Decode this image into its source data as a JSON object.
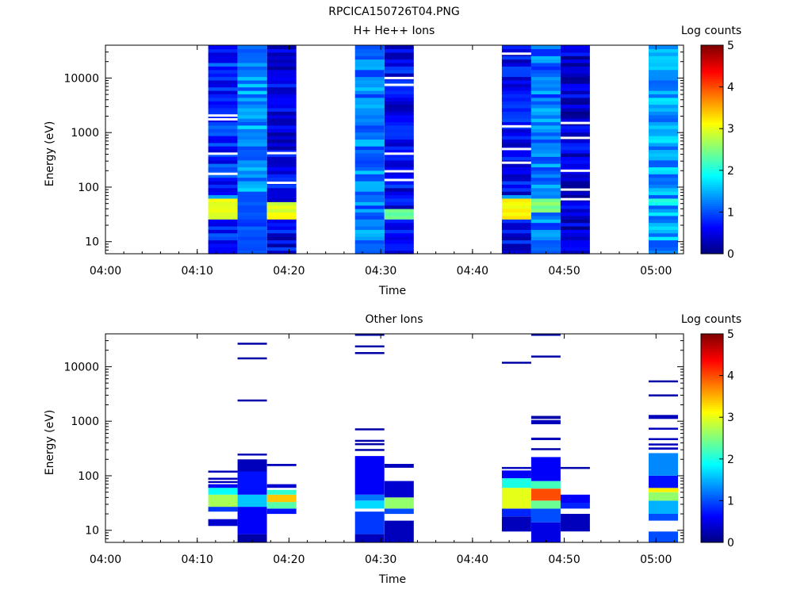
{
  "figure_title": "RPCICA150726T04.PNG",
  "colors": {
    "jet": [
      "#00007f",
      "#0000ff",
      "#007fff",
      "#00ffff",
      "#7fff7f",
      "#ffff00",
      "#ff7f00",
      "#ff0000",
      "#7f0000"
    ],
    "axis": "#000000",
    "background": "#ffffff"
  },
  "chart_data": [
    {
      "type": "heatmap",
      "title": "H+ He++ Ions",
      "xlabel": "Time",
      "ylabel": "Energy (eV)",
      "yscale": "log",
      "xlim": [
        "04:00",
        "05:03"
      ],
      "ylim": [
        6,
        40000
      ],
      "x_ticks": [
        "04:00",
        "04:10",
        "04:20",
        "04:30",
        "04:40",
        "04:50",
        "05:00"
      ],
      "y_ticks": [
        "10",
        "100",
        "1000",
        "10000"
      ],
      "colorbar": {
        "label": "Log counts",
        "range": [
          0,
          5
        ],
        "ticks": [
          "0",
          "1",
          "2",
          "3",
          "4",
          "5"
        ]
      },
      "columns": [
        {
          "start": "04:11:12",
          "end": "04:14:24",
          "base": 0.8,
          "features": [
            {
              "emin": 27,
              "emax": 60,
              "value": 3.0
            },
            {
              "emin": 60,
              "emax": 70,
              "value": 1.6
            }
          ],
          "gaps": [
            1750,
            2050,
            410,
            175
          ]
        },
        {
          "start": "04:14:24",
          "end": "04:17:36",
          "base": 1.35,
          "features": [
            {
              "emin": 6,
              "emax": 70,
              "value": 1.0
            }
          ],
          "gaps": []
        },
        {
          "start": "04:17:36",
          "end": "04:20:48",
          "base": 0.55,
          "features": [
            {
              "emin": 27,
              "emax": 55,
              "value": 3.0
            }
          ],
          "gaps": [
            420,
            120
          ]
        },
        {
          "start": "04:27:12",
          "end": "04:30:24",
          "base": 1.25,
          "features": [],
          "gaps": []
        },
        {
          "start": "04:30:24",
          "end": "04:33:36",
          "base": 0.6,
          "features": [
            {
              "emin": 25,
              "emax": 40,
              "value": 2.4
            }
          ],
          "gaps": [
            10000,
            7500,
            410,
            195,
            135
          ]
        },
        {
          "start": "04:43:12",
          "end": "04:46:24",
          "base": 0.6,
          "features": [
            {
              "emin": 25,
              "emax": 60,
              "value": 3.1
            },
            {
              "emin": 60,
              "emax": 72,
              "value": 1.5
            }
          ],
          "gaps": [
            28000,
            1300,
            500,
            280
          ]
        },
        {
          "start": "04:46:24",
          "end": "04:49:36",
          "base": 1.2,
          "features": [
            {
              "emin": 35,
              "emax": 60,
              "value": 2.5
            }
          ],
          "gaps": []
        },
        {
          "start": "04:49:36",
          "end": "04:52:48",
          "base": 0.45,
          "features": [],
          "gaps": [
            1500,
            800,
            200,
            90,
            60
          ]
        },
        {
          "start": "04:59:12",
          "end": "05:02:24",
          "base": 1.4,
          "features": [
            {
              "emin": 45,
              "emax": 60,
              "value": 1.9
            }
          ],
          "gaps": []
        }
      ]
    },
    {
      "type": "heatmap",
      "title": "Other Ions",
      "xlabel": "Time",
      "ylabel": "Energy (eV)",
      "yscale": "log",
      "xlim": [
        "04:00",
        "05:03"
      ],
      "ylim": [
        6,
        40000
      ],
      "x_ticks": [
        "04:00",
        "04:10",
        "04:20",
        "04:30",
        "04:40",
        "04:50",
        "05:00"
      ],
      "y_ticks": [
        "10",
        "100",
        "1000",
        "10000"
      ],
      "colorbar": {
        "label": "Log counts",
        "range": [
          0,
          5
        ],
        "ticks": [
          "0",
          "1",
          "2",
          "3",
          "4",
          "5"
        ]
      },
      "columns": [
        {
          "start": "04:11:12",
          "end": "04:14:24",
          "features": [
            {
              "emin": 12,
              "emax": 16,
              "value": 0.4
            },
            {
              "emin": 22,
              "emax": 27,
              "value": 0.9
            },
            {
              "emin": 27,
              "emax": 45,
              "value": 2.7
            },
            {
              "emin": 45,
              "emax": 60,
              "value": 1.9
            },
            {
              "emin": 60,
              "emax": 70,
              "value": 0.6
            },
            {
              "emin": 75,
              "emax": 80,
              "value": 0.3
            },
            {
              "emin": 87,
              "emax": 92,
              "value": 0.3
            },
            {
              "emin": 118,
              "emax": 124,
              "value": 0.3
            }
          ]
        },
        {
          "start": "04:14:24",
          "end": "04:17:36",
          "features": [
            {
              "emin": 6,
              "emax": 8.5,
              "value": 0.2
            },
            {
              "emin": 8.5,
              "emax": 27,
              "value": 0.6
            },
            {
              "emin": 27,
              "emax": 45,
              "value": 1.6
            },
            {
              "emin": 45,
              "emax": 120,
              "value": 0.7
            },
            {
              "emin": 120,
              "emax": 200,
              "value": 0.3
            },
            {
              "emin": 240,
              "emax": 255,
              "value": 0.3
            },
            {
              "emin": 2350,
              "emax": 2500,
              "value": 0.2
            },
            {
              "emin": 14000,
              "emax": 14800,
              "value": 0.2
            },
            {
              "emin": 26000,
              "emax": 27500,
              "value": 0.2
            }
          ]
        },
        {
          "start": "04:17:36",
          "end": "04:20:48",
          "features": [
            {
              "emin": 20,
              "emax": 25,
              "value": 0.7
            },
            {
              "emin": 25,
              "emax": 33,
              "value": 2.3
            },
            {
              "emin": 33,
              "emax": 45,
              "value": 3.4
            },
            {
              "emin": 45,
              "emax": 55,
              "value": 2.1
            },
            {
              "emin": 60,
              "emax": 70,
              "value": 0.4
            },
            {
              "emin": 150,
              "emax": 165,
              "value": 0.3
            }
          ]
        },
        {
          "start": "04:27:12",
          "end": "04:30:24",
          "features": [
            {
              "emin": 6,
              "emax": 8.5,
              "value": 0.3
            },
            {
              "emin": 8.5,
              "emax": 22,
              "value": 0.9
            },
            {
              "emin": 25,
              "emax": 35,
              "value": 1.7
            },
            {
              "emin": 35,
              "emax": 45,
              "value": 1.2
            },
            {
              "emin": 45,
              "emax": 230,
              "value": 0.6
            },
            {
              "emin": 290,
              "emax": 310,
              "value": 0.2
            },
            {
              "emin": 370,
              "emax": 395,
              "value": 0.2
            },
            {
              "emin": 430,
              "emax": 455,
              "value": 0.2
            },
            {
              "emin": 700,
              "emax": 740,
              "value": 0.2
            },
            {
              "emin": 17500,
              "emax": 18500,
              "value": 0.2
            },
            {
              "emin": 23000,
              "emax": 24500,
              "value": 0.2
            },
            {
              "emin": 38000,
              "emax": 40000,
              "value": 0.2
            }
          ]
        },
        {
          "start": "04:30:24",
          "end": "04:33:36",
          "features": [
            {
              "emin": 6,
              "emax": 15,
              "value": 0.3
            },
            {
              "emin": 20,
              "emax": 25,
              "value": 1.0
            },
            {
              "emin": 25,
              "emax": 40,
              "value": 2.6
            },
            {
              "emin": 40,
              "emax": 80,
              "value": 0.4
            },
            {
              "emin": 140,
              "emax": 165,
              "value": 0.3
            }
          ]
        },
        {
          "start": "04:43:12",
          "end": "04:46:24",
          "features": [
            {
              "emin": 9.5,
              "emax": 18,
              "value": 0.3
            },
            {
              "emin": 18,
              "emax": 25,
              "value": 0.8
            },
            {
              "emin": 25,
              "emax": 60,
              "value": 3.0
            },
            {
              "emin": 60,
              "emax": 90,
              "value": 2.0
            },
            {
              "emin": 90,
              "emax": 125,
              "value": 0.6
            },
            {
              "emin": 135,
              "emax": 145,
              "value": 0.3
            },
            {
              "emin": 11500,
              "emax": 12300,
              "value": 0.2
            }
          ]
        },
        {
          "start": "04:46:24",
          "end": "04:49:36",
          "features": [
            {
              "emin": 6,
              "emax": 14,
              "value": 0.5
            },
            {
              "emin": 14,
              "emax": 25,
              "value": 1.0
            },
            {
              "emin": 25,
              "emax": 35,
              "value": 2.4
            },
            {
              "emin": 35,
              "emax": 58,
              "value": 4.0
            },
            {
              "emin": 58,
              "emax": 80,
              "value": 2.2
            },
            {
              "emin": 80,
              "emax": 220,
              "value": 0.6
            },
            {
              "emin": 300,
              "emax": 320,
              "value": 0.2
            },
            {
              "emin": 450,
              "emax": 500,
              "value": 0.3
            },
            {
              "emin": 880,
              "emax": 1050,
              "value": 0.3
            },
            {
              "emin": 1100,
              "emax": 1250,
              "value": 0.2
            },
            {
              "emin": 15000,
              "emax": 16000,
              "value": 0.2
            },
            {
              "emin": 38000,
              "emax": 40000,
              "value": 0.2
            }
          ]
        },
        {
          "start": "04:49:36",
          "end": "04:52:48",
          "features": [
            {
              "emin": 9.5,
              "emax": 20,
              "value": 0.3
            },
            {
              "emin": 25,
              "emax": 32,
              "value": 0.8
            },
            {
              "emin": 32,
              "emax": 45,
              "value": 0.6
            },
            {
              "emin": 135,
              "emax": 145,
              "value": 0.2
            }
          ]
        },
        {
          "start": "04:59:12",
          "end": "05:02:24",
          "features": [
            {
              "emin": 6,
              "emax": 9.5,
              "value": 1.0
            },
            {
              "emin": 15,
              "emax": 20,
              "value": 1.0
            },
            {
              "emin": 20,
              "emax": 35,
              "value": 1.5
            },
            {
              "emin": 35,
              "emax": 50,
              "value": 2.6
            },
            {
              "emin": 50,
              "emax": 60,
              "value": 3.2
            },
            {
              "emin": 60,
              "emax": 100,
              "value": 0.7
            },
            {
              "emin": 100,
              "emax": 260,
              "value": 1.3
            },
            {
              "emin": 300,
              "emax": 330,
              "value": 0.3
            },
            {
              "emin": 360,
              "emax": 390,
              "value": 0.3
            },
            {
              "emin": 460,
              "emax": 490,
              "value": 0.3
            },
            {
              "emin": 700,
              "emax": 760,
              "value": 0.3
            },
            {
              "emin": 1100,
              "emax": 1300,
              "value": 0.3
            },
            {
              "emin": 2900,
              "emax": 3100,
              "value": 0.2
            },
            {
              "emin": 5300,
              "emax": 5600,
              "value": 0.2
            }
          ]
        }
      ]
    }
  ]
}
